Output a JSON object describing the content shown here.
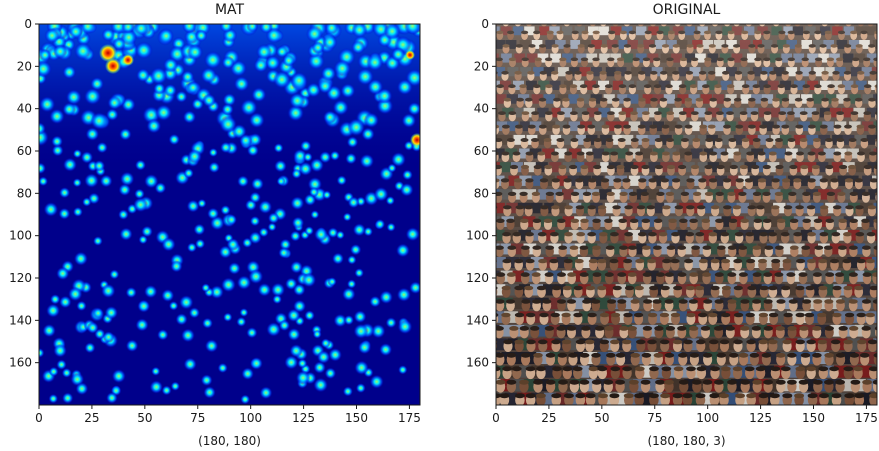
{
  "colors": {
    "background": "#ffffff",
    "axis": "#1a1a1a",
    "heatmap_base": "#00008b",
    "heatmap_hot": "#b00000"
  },
  "chart_data": [
    {
      "type": "heatmap",
      "title": "MAT",
      "xlabel": "(180, 180)",
      "ylabel": "",
      "colormap": "jet",
      "content": "density-map",
      "xlim": [
        0,
        180
      ],
      "ylim": [
        180,
        0
      ],
      "xticks": [
        0,
        25,
        50,
        75,
        100,
        125,
        150,
        175
      ],
      "yticks": [
        0,
        20,
        40,
        60,
        80,
        100,
        120,
        140,
        160
      ],
      "grid": false
    },
    {
      "type": "image",
      "title": "ORIGINAL",
      "xlabel": "(180, 180, 3)",
      "ylabel": "",
      "content": "crowd-photo",
      "xlim": [
        0,
        180
      ],
      "ylim": [
        180,
        0
      ],
      "xticks": [
        0,
        25,
        50,
        75,
        100,
        125,
        150,
        175
      ],
      "yticks": [
        0,
        20,
        40,
        60,
        80,
        100,
        120,
        140,
        160
      ],
      "grid": false
    }
  ]
}
